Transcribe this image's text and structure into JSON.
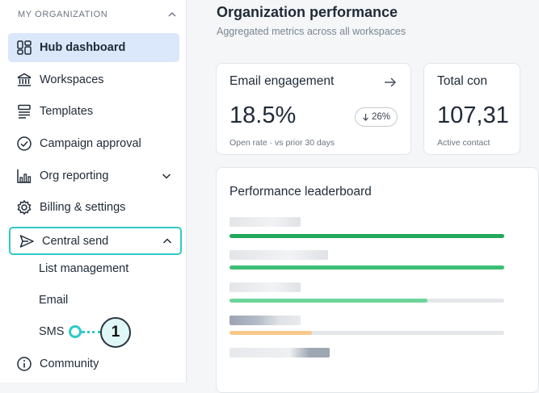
{
  "sidebar": {
    "section_title": "MY ORGANIZATION",
    "items": [
      {
        "label": "Hub dashboard",
        "icon": "dashboard-icon"
      },
      {
        "label": "Workspaces",
        "icon": "bank-icon"
      },
      {
        "label": "Templates",
        "icon": "template-icon"
      },
      {
        "label": "Campaign approval",
        "icon": "check-circle-icon"
      },
      {
        "label": "Org reporting",
        "icon": "chart-icon"
      },
      {
        "label": "Billing & settings",
        "icon": "gear-icon"
      },
      {
        "label": "Central send",
        "icon": "send-icon"
      },
      {
        "label": "Community",
        "icon": "info-icon"
      }
    ],
    "sub_items": [
      "List management",
      "Email",
      "SMS"
    ]
  },
  "callout": {
    "number": "1"
  },
  "main": {
    "title": "Organization performance",
    "subtitle": "Aggregated metrics across all workspaces",
    "email_card": {
      "title": "Email engagement",
      "value": "18.5%",
      "delta": "26%",
      "delta_direction": "down",
      "caption": "Open rate · vs prior 30 days"
    },
    "total_card": {
      "title": "Total con",
      "value": "107,31",
      "caption": "Active contact"
    },
    "leaderboard": {
      "title": "Performance leaderboard",
      "rows": [
        {
          "fill_percent": 100,
          "color": "#21a85c"
        },
        {
          "fill_percent": 100,
          "color": "#3cbf77"
        },
        {
          "fill_percent": 72,
          "color": "#6fd49a"
        },
        {
          "fill_percent": 30,
          "color": "#f7c98a"
        },
        {
          "fill_percent": 0,
          "color": "#e4e6ea"
        }
      ]
    }
  },
  "colors": {
    "accent_teal": "#2ec9c7",
    "active_bg": "#dbe8fb"
  }
}
